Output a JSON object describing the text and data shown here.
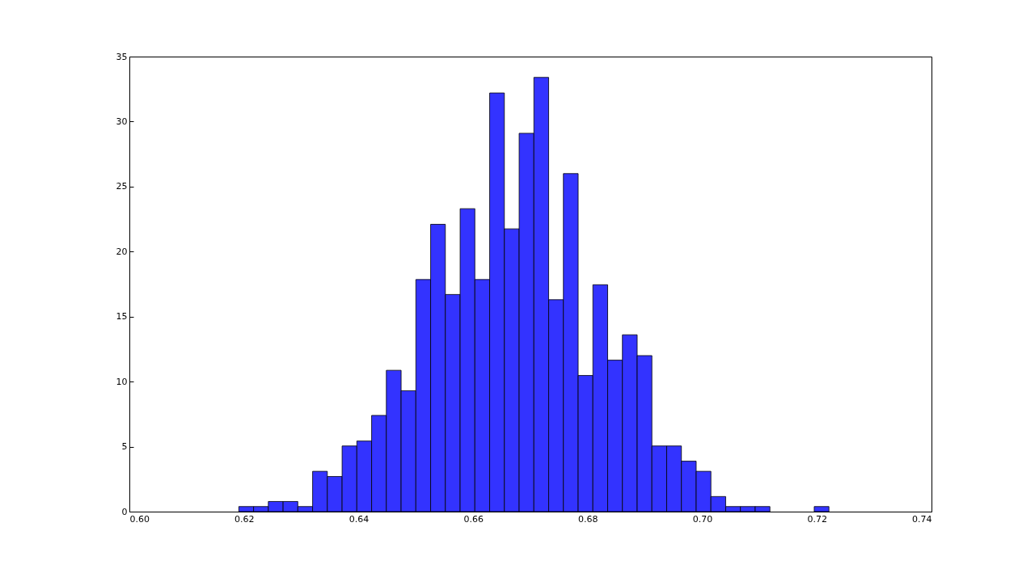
{
  "chart_data": {
    "type": "histogram",
    "color": "#3333ff",
    "bins": [
      0.6191,
      0.62168,
      0.62425,
      0.62683,
      0.6294,
      0.63198,
      0.63455,
      0.63713,
      0.6397,
      0.64228,
      0.64485,
      0.64743,
      0.65,
      0.65258,
      0.65515,
      0.65773,
      0.6603,
      0.66288,
      0.66545,
      0.66803,
      0.6706,
      0.67318,
      0.67575,
      0.67833,
      0.6809,
      0.68348,
      0.68605,
      0.68863,
      0.6912,
      0.69378,
      0.69635,
      0.69893,
      0.7015,
      0.70408,
      0.70665,
      0.70923,
      0.7118,
      0.71438,
      0.71695,
      0.71953,
      0.7221
    ],
    "values": [
      0.39,
      0.39,
      0.78,
      0.78,
      0.39,
      3.1,
      2.7,
      5.05,
      5.43,
      7.4,
      10.87,
      9.3,
      17.85,
      22.1,
      16.7,
      23.3,
      17.85,
      32.2,
      21.75,
      29.1,
      33.4,
      16.3,
      26.0,
      10.47,
      17.45,
      11.65,
      13.6,
      12.0,
      5.05,
      5.05,
      3.88,
      3.1,
      1.16,
      0.39,
      0.39,
      0.39,
      0,
      0,
      0,
      0.39
    ],
    "xlim": [
      0.6,
      0.74
    ],
    "xticks": [
      {
        "value": 0.6,
        "label": "0.60"
      },
      {
        "value": 0.62,
        "label": "0.62"
      },
      {
        "value": 0.64,
        "label": "0.64"
      },
      {
        "value": 0.66,
        "label": "0.66"
      },
      {
        "value": 0.68,
        "label": "0.68"
      },
      {
        "value": 0.7,
        "label": "0.70"
      },
      {
        "value": 0.72,
        "label": "0.72"
      },
      {
        "value": 0.74,
        "label": "0.74"
      }
    ],
    "ylim": [
      0,
      35
    ],
    "yticks": [
      0,
      5,
      10,
      15,
      20,
      25,
      30,
      35
    ],
    "grid": false
  }
}
